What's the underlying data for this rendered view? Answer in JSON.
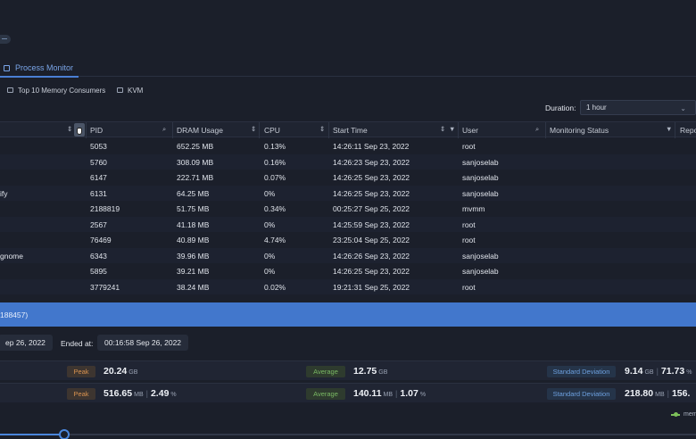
{
  "tabs": {
    "active": "Process Monitor"
  },
  "subtabs": [
    "Top 10 Memory Consumers",
    "KVM"
  ],
  "duration": {
    "label": "Duration:",
    "value": "1 hour"
  },
  "columns": [
    "PID",
    "DRAM Usage",
    "CPU",
    "Start Time",
    "User",
    "Monitoring Status",
    "Repo"
  ],
  "rows": [
    {
      "name": "",
      "pid": "5053",
      "dram": "652.25 MB",
      "cpu": "0.13%",
      "start": "14:26:11 Sep 23, 2022",
      "user": "root"
    },
    {
      "name": "",
      "pid": "5760",
      "dram": "308.09 MB",
      "cpu": "0.16%",
      "start": "14:26:23 Sep 23, 2022",
      "user": "sanjoselab"
    },
    {
      "name": "",
      "pid": "6147",
      "dram": "222.71 MB",
      "cpu": "0.07%",
      "start": "14:26:25 Sep 23, 2022",
      "user": "sanjoselab"
    },
    {
      "name": "ify",
      "pid": "6131",
      "dram": "64.25 MB",
      "cpu": "0%",
      "start": "14:26:25 Sep 23, 2022",
      "user": "sanjoselab"
    },
    {
      "name": "",
      "pid": "2188819",
      "dram": "51.75 MB",
      "cpu": "0.34%",
      "start": "00:25:27 Sep 25, 2022",
      "user": "mvmm"
    },
    {
      "name": "",
      "pid": "2567",
      "dram": "41.18 MB",
      "cpu": "0%",
      "start": "14:25:59 Sep 23, 2022",
      "user": "root"
    },
    {
      "name": "",
      "pid": "76469",
      "dram": "40.89 MB",
      "cpu": "4.74%",
      "start": "23:25:04 Sep 25, 2022",
      "user": "root"
    },
    {
      "name": "gnome",
      "pid": "6343",
      "dram": "39.96 MB",
      "cpu": "0%",
      "start": "14:26:26 Sep 23, 2022",
      "user": "sanjoselab"
    },
    {
      "name": "",
      "pid": "5895",
      "dram": "39.21 MB",
      "cpu": "0%",
      "start": "14:26:25 Sep 23, 2022",
      "user": "sanjoselab"
    },
    {
      "name": "",
      "pid": "3779241",
      "dram": "38.24 MB",
      "cpu": "0.02%",
      "start": "19:21:31 Sep 25, 2022",
      "user": "root"
    }
  ],
  "selected": {
    "text": "188457)"
  },
  "timeinfo": {
    "started": "ep 26, 2022",
    "ended_label": "Ended at:",
    "ended": "00:16:58 Sep 26, 2022"
  },
  "stats": [
    {
      "peak_label": "Peak",
      "peak": "20.24",
      "peak_unit": "GB",
      "peak_pct": "",
      "peak_pct_unit": "",
      "avg_label": "Average",
      "avg": "12.75",
      "avg_unit": "GB",
      "avg_pct": "",
      "avg_pct_unit": "",
      "std_label": "Standard Deviation",
      "std": "9.14",
      "std_unit": "GB",
      "std_pct": "71.73",
      "std_pct_unit": "%"
    },
    {
      "peak_label": "Peak",
      "peak": "516.65",
      "peak_unit": "MB",
      "peak_pct": "2.49",
      "peak_pct_unit": "%",
      "avg_label": "Average",
      "avg": "140.11",
      "avg_unit": "MB",
      "avg_pct": "1.07",
      "avg_pct_unit": "%",
      "std_label": "Standard Deviation",
      "std": "218.80",
      "std_unit": "MB",
      "std_pct": "156.",
      "std_pct_unit": ""
    }
  ],
  "legend": {
    "label": "mem"
  },
  "colors": {
    "accent": "#4277cc",
    "peak": "#d89250",
    "average": "#79b863",
    "stddev": "#6da0df"
  }
}
